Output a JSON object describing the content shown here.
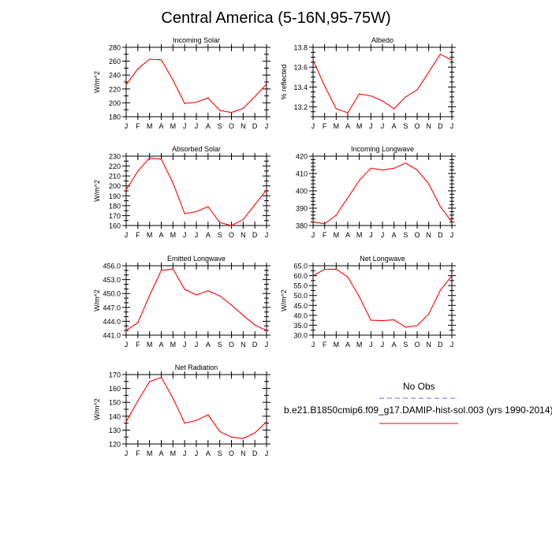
{
  "title": "Central America (5-16N,95-75W)",
  "legend": {
    "obs_label": "No Obs",
    "model_label": "b.e21.B1850cmip6.f09_g17.DAMIP-hist-sol.003 (yrs 1990-2014)",
    "obs_color": "#6666ff",
    "model_color": "#ff0000"
  },
  "chart_data": [
    {
      "type": "line",
      "title": "Incoming Solar",
      "ylabel": "W/m^2",
      "categories": [
        "J",
        "F",
        "M",
        "A",
        "M",
        "J",
        "J",
        "A",
        "S",
        "O",
        "N",
        "D",
        "J"
      ],
      "ylim": [
        180,
        280
      ],
      "yticks": [
        180,
        190,
        200,
        210,
        220,
        230,
        240,
        250,
        260,
        270,
        280
      ],
      "yticklabels": [
        "180",
        "200",
        "220",
        "240",
        "260",
        "280"
      ],
      "values": [
        226,
        249,
        263,
        262,
        233,
        199,
        201,
        207,
        189,
        186,
        192,
        209,
        227
      ]
    },
    {
      "type": "line",
      "title": "Albedo",
      "ylabel": "% reflected",
      "categories": [
        "J",
        "F",
        "M",
        "A",
        "M",
        "J",
        "J",
        "A",
        "S",
        "O",
        "N",
        "D",
        "J"
      ],
      "ylim": [
        13.1,
        13.8
      ],
      "yticks": [
        13.1,
        13.15,
        13.2,
        13.25,
        13.3,
        13.35,
        13.4,
        13.45,
        13.5,
        13.55,
        13.6,
        13.65,
        13.7,
        13.75,
        13.8
      ],
      "yticklabels": [
        "13.2",
        "13.4",
        "13.6",
        "13.8"
      ],
      "values": [
        13.67,
        13.41,
        13.18,
        13.14,
        13.33,
        13.31,
        13.26,
        13.18,
        13.3,
        13.37,
        13.55,
        13.73,
        13.67
      ]
    },
    {
      "type": "line",
      "title": "Absorbed Solar",
      "ylabel": "W/m^2",
      "categories": [
        "J",
        "F",
        "M",
        "A",
        "M",
        "J",
        "J",
        "A",
        "S",
        "O",
        "N",
        "D",
        "J"
      ],
      "ylim": [
        160,
        230
      ],
      "yticks": [
        160,
        165,
        170,
        175,
        180,
        185,
        190,
        195,
        200,
        205,
        210,
        215,
        220,
        225,
        230
      ],
      "yticklabels": [
        "160",
        "170",
        "180",
        "190",
        "200",
        "210",
        "220",
        "230"
      ],
      "values": [
        196,
        215,
        228,
        227,
        203,
        172,
        174,
        179,
        163,
        160,
        166,
        181,
        196
      ]
    },
    {
      "type": "line",
      "title": "Incoming Longwave",
      "ylabel": "",
      "categories": [
        "J",
        "F",
        "M",
        "A",
        "M",
        "J",
        "J",
        "A",
        "S",
        "O",
        "N",
        "D",
        "J"
      ],
      "ylim": [
        380,
        420
      ],
      "yticks": [
        380,
        382,
        384,
        386,
        388,
        390,
        392,
        394,
        396,
        398,
        400,
        402,
        404,
        406,
        408,
        410,
        412,
        414,
        416,
        418,
        420
      ],
      "yticklabels": [
        "380",
        "390",
        "400",
        "410",
        "420"
      ],
      "values": [
        382,
        381,
        386,
        396,
        406,
        413,
        412,
        413,
        416,
        412,
        404,
        391,
        382
      ]
    },
    {
      "type": "line",
      "title": "Emitted Longwave",
      "ylabel": "W/m^2",
      "categories": [
        "J",
        "F",
        "M",
        "A",
        "M",
        "J",
        "J",
        "A",
        "S",
        "O",
        "N",
        "D",
        "J"
      ],
      "ylim": [
        441.0,
        456.0
      ],
      "yticks": [
        441,
        442,
        443,
        444,
        445,
        446,
        447,
        448,
        449,
        450,
        451,
        452,
        453,
        454,
        455,
        456
      ],
      "yticklabels": [
        "441.0",
        "444.0",
        "447.0",
        "450.0",
        "453.0",
        "456.0"
      ],
      "values": [
        442.0,
        443.7,
        449.6,
        455.0,
        455.3,
        450.9,
        449.7,
        450.6,
        449.5,
        447.5,
        445.3,
        443.2,
        442.0
      ]
    },
    {
      "type": "line",
      "title": "Net Longwave",
      "ylabel": "W/m^2",
      "categories": [
        "J",
        "F",
        "M",
        "A",
        "M",
        "J",
        "J",
        "A",
        "S",
        "O",
        "N",
        "D",
        "J"
      ],
      "ylim": [
        30.0,
        65.0
      ],
      "yticks": [
        30,
        32.5,
        35,
        37.5,
        40,
        42.5,
        45,
        47.5,
        50,
        52.5,
        55,
        57.5,
        60,
        62.5,
        65
      ],
      "yticklabels": [
        "30.0",
        "35.0",
        "40.0",
        "45.0",
        "50.0",
        "55.0",
        "60.0",
        "65.0"
      ],
      "values": [
        60.0,
        63.2,
        63.3,
        59.3,
        49.3,
        37.5,
        37.3,
        37.7,
        34.0,
        34.8,
        40.7,
        52.5,
        60.0
      ]
    },
    {
      "type": "line",
      "title": "Net Radiation",
      "ylabel": "W/m^2",
      "categories": [
        "J",
        "F",
        "M",
        "A",
        "M",
        "J",
        "J",
        "A",
        "S",
        "O",
        "N",
        "D",
        "J"
      ],
      "ylim": [
        120,
        170
      ],
      "yticks": [
        120,
        125,
        130,
        135,
        140,
        145,
        150,
        155,
        160,
        165,
        170
      ],
      "yticklabels": [
        "120",
        "130",
        "140",
        "150",
        "160",
        "170"
      ],
      "values": [
        136,
        151,
        165,
        168,
        153,
        135,
        137,
        141,
        129,
        125,
        124,
        128,
        136
      ]
    }
  ]
}
